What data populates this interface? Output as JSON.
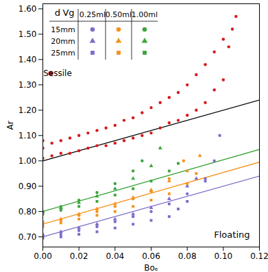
{
  "chart_data": {
    "type": "scatter",
    "x_label": "Boₑ",
    "y_label": "Ar",
    "annotation": "Floating",
    "xlim": [
      0,
      0.12
    ],
    "ylim": [
      0.66,
      1.62
    ],
    "xticks": [
      {
        "value": 0,
        "label": "0.00"
      },
      {
        "value": 0.02,
        "label": "0.02"
      },
      {
        "value": 0.04,
        "label": "0.04"
      },
      {
        "value": 0.06,
        "label": "0.06"
      },
      {
        "value": 0.08,
        "label": "0.08"
      },
      {
        "value": 0.1,
        "label": "0.10"
      },
      {
        "value": 0.12,
        "label": "0.12"
      }
    ],
    "yticks": [
      {
        "value": 0.7,
        "label": "0.70"
      },
      {
        "value": 0.8,
        "label": "0.80"
      },
      {
        "value": 0.9,
        "label": "0.90"
      },
      {
        "value": 1.0,
        "label": "1.00"
      },
      {
        "value": 1.1,
        "label": "1.10"
      },
      {
        "value": 1.2,
        "label": "1.20"
      },
      {
        "value": 1.3,
        "label": "1.30"
      },
      {
        "value": 1.4,
        "label": "1.40"
      },
      {
        "value": 1.5,
        "label": "1.50"
      },
      {
        "value": 1.6,
        "label": "1.60"
      }
    ],
    "grid": false,
    "legend": "top-left",
    "legend_table": {
      "row_title": "d",
      "col_title": "Vg",
      "rows": [
        "15mm",
        "20mm",
        "25mm"
      ],
      "columns": [
        "0.25ml",
        "0.50ml",
        "1.00ml"
      ]
    },
    "series": [
      {
        "name": "Sessile",
        "color": "#d7191c",
        "marker": "circle",
        "x": [
          0,
          0,
          0,
          0.005,
          0.005,
          0.01,
          0.01,
          0.015,
          0.015,
          0.02,
          0.02,
          0.025,
          0.025,
          0.03,
          0.03,
          0.035,
          0.035,
          0.04,
          0.04,
          0.045,
          0.045,
          0.05,
          0.05,
          0.055,
          0.055,
          0.06,
          0.06,
          0.065,
          0.065,
          0.07,
          0.07,
          0.075,
          0.075,
          0.08,
          0.08,
          0.085,
          0.085,
          0.09,
          0.09,
          0.095,
          0.095,
          0.1,
          0.1,
          0.103,
          0.105,
          0.107
        ],
        "values": [
          1.01,
          1.05,
          1.08,
          1.02,
          1.07,
          1.03,
          1.08,
          1.03,
          1.09,
          1.04,
          1.1,
          1.05,
          1.11,
          1.06,
          1.12,
          1.06,
          1.13,
          1.07,
          1.14,
          1.08,
          1.16,
          1.09,
          1.17,
          1.1,
          1.19,
          1.11,
          1.21,
          1.13,
          1.23,
          1.15,
          1.25,
          1.16,
          1.27,
          1.18,
          1.3,
          1.2,
          1.34,
          1.23,
          1.38,
          1.28,
          1.43,
          1.32,
          1.48,
          1.45,
          1.52,
          1.57
        ]
      },
      {
        "d": "15mm",
        "Vg": "0.25ml",
        "color": "#7f6bc9",
        "marker": "circle",
        "x": [
          0,
          0.01,
          0.02,
          0.03,
          0.04,
          0.05,
          0.06,
          0.07,
          0.08,
          0.09,
          0.098
        ],
        "values": [
          0.7,
          0.71,
          0.725,
          0.74,
          0.76,
          0.78,
          0.8,
          0.83,
          0.87,
          0.93,
          1.1
        ]
      },
      {
        "d": "20mm",
        "Vg": "0.25ml",
        "color": "#7f6bc9",
        "marker": "triangle",
        "x": [
          0,
          0.01,
          0.02,
          0.03,
          0.04,
          0.05,
          0.06,
          0.07,
          0.08,
          0.085
        ],
        "values": [
          0.71,
          0.72,
          0.735,
          0.75,
          0.77,
          0.79,
          0.815,
          0.85,
          0.9,
          0.93
        ]
      },
      {
        "d": "25mm",
        "Vg": "0.25ml",
        "color": "#7f6bc9",
        "marker": "square",
        "x": [
          0,
          0.01,
          0.02,
          0.03,
          0.04,
          0.05,
          0.06,
          0.07,
          0.075,
          0.08,
          0.09,
          0.095
        ],
        "values": [
          0.695,
          0.7,
          0.71,
          0.72,
          0.735,
          0.75,
          0.765,
          0.78,
          0.81,
          0.84,
          0.92,
          1.0
        ]
      },
      {
        "d": "15mm",
        "Vg": "0.50ml",
        "color": "#f5921e",
        "marker": "circle",
        "x": [
          0,
          0.01,
          0.02,
          0.03,
          0.04,
          0.05,
          0.06,
          0.07,
          0.078
        ],
        "values": [
          0.75,
          0.765,
          0.785,
          0.8,
          0.82,
          0.85,
          0.88,
          0.93,
          1.0
        ]
      },
      {
        "d": "20mm",
        "Vg": "0.50ml",
        "color": "#f5921e",
        "marker": "triangle",
        "x": [
          0,
          0.01,
          0.02,
          0.03,
          0.04,
          0.05,
          0.06,
          0.07,
          0.08,
          0.087
        ],
        "values": [
          0.76,
          0.77,
          0.79,
          0.81,
          0.83,
          0.855,
          0.885,
          0.92,
          0.96,
          1.02
        ]
      },
      {
        "d": "25mm",
        "Vg": "0.50ml",
        "color": "#f5921e",
        "marker": "square",
        "x": [
          0,
          0.01,
          0.02,
          0.03,
          0.04,
          0.05,
          0.06,
          0.07,
          0.08,
          0.085
        ],
        "values": [
          0.74,
          0.755,
          0.77,
          0.785,
          0.8,
          0.82,
          0.845,
          0.87,
          0.91,
          0.95
        ]
      },
      {
        "d": "15mm",
        "Vg": "1.00ml",
        "color": "#3ca53c",
        "marker": "circle",
        "x": [
          0,
          0.01,
          0.02,
          0.03,
          0.04,
          0.05,
          0.055
        ],
        "values": [
          0.8,
          0.82,
          0.845,
          0.875,
          0.91,
          0.96,
          1.0
        ]
      },
      {
        "d": "20mm",
        "Vg": "1.00ml",
        "color": "#3ca53c",
        "marker": "triangle",
        "x": [
          0,
          0.01,
          0.02,
          0.03,
          0.04,
          0.05,
          0.06,
          0.065
        ],
        "values": [
          0.8,
          0.815,
          0.835,
          0.86,
          0.89,
          0.93,
          0.98,
          1.05
        ]
      },
      {
        "d": "25mm",
        "Vg": "1.00ml",
        "color": "#3ca53c",
        "marker": "square",
        "x": [
          0,
          0.01,
          0.02,
          0.03,
          0.04,
          0.05,
          0.06,
          0.07,
          0.075
        ],
        "values": [
          0.79,
          0.805,
          0.82,
          0.84,
          0.865,
          0.89,
          0.92,
          0.96,
          0.99
        ]
      }
    ],
    "lines": [
      {
        "color": "#000000",
        "line_style": "solid",
        "x": [
          0,
          0.12
        ],
        "values": [
          1.0,
          1.24
        ]
      },
      {
        "color": "#3ca53c",
        "line_style": "solid",
        "x": [
          0,
          0.12
        ],
        "values": [
          0.8,
          1.045
        ]
      },
      {
        "color": "#f5921e",
        "line_style": "solid",
        "x": [
          0,
          0.12
        ],
        "values": [
          0.75,
          0.995
        ]
      },
      {
        "color": "#7f6bc9",
        "line_style": "solid",
        "x": [
          0,
          0.12
        ],
        "values": [
          0.7,
          0.94
        ]
      }
    ]
  }
}
